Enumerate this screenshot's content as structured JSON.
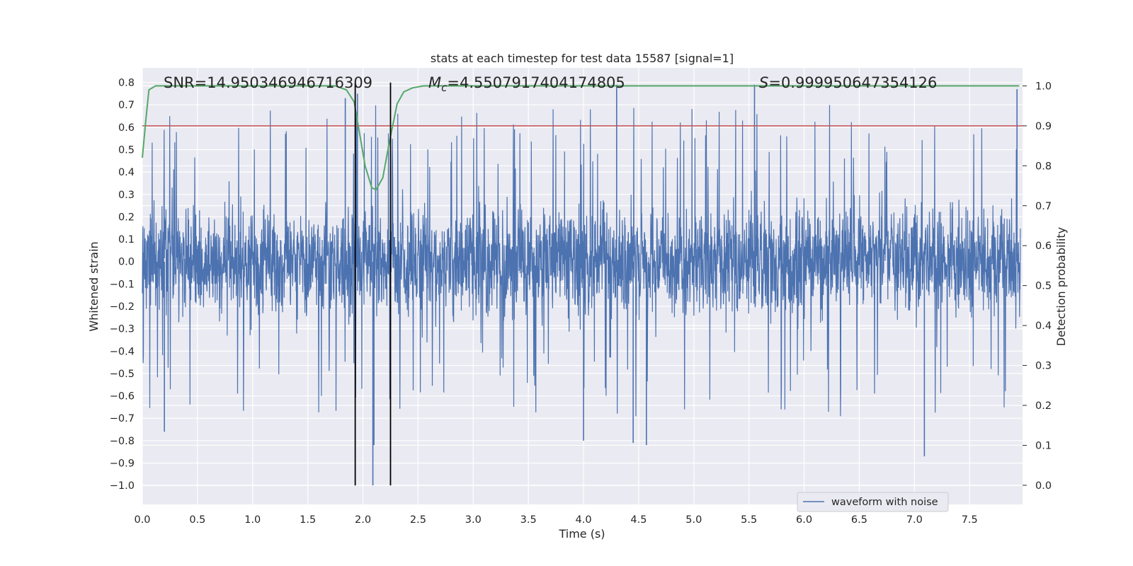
{
  "chart_data": {
    "type": "line",
    "title": "stats at each timestep for test data 15587 [signal=1]",
    "xlabel": "Time (s)",
    "ylabel": "Whitened strain",
    "y2label": "Detection probability",
    "xlim": [
      0.0,
      7.98
    ],
    "ylim": [
      -1.085,
      0.865
    ],
    "y2lim": [
      -0.048,
      1.045
    ],
    "x_ticks": [
      "0.0",
      "0.5",
      "1.0",
      "1.5",
      "2.0",
      "2.5",
      "3.0",
      "3.5",
      "4.0",
      "4.5",
      "5.0",
      "5.5",
      "6.0",
      "6.5",
      "7.0",
      "7.5"
    ],
    "y_ticks": [
      "0.8",
      "0.7",
      "0.6",
      "0.5",
      "0.4",
      "0.3",
      "0.2",
      "0.1",
      "0.0",
      "−0.1",
      "−0.2",
      "−0.3",
      "−0.4",
      "−0.5",
      "−0.6",
      "−0.7",
      "−0.8",
      "−0.9",
      "−1.0"
    ],
    "y2_ticks": [
      "1.0",
      "0.9",
      "0.8",
      "0.7",
      "0.6",
      "0.5",
      "0.4",
      "0.3",
      "0.2",
      "0.1",
      "0.0"
    ],
    "grid": true,
    "legend_position": "bottom-right",
    "annotations": {
      "snr": "SNR=14.950346946716309",
      "mc_symbol": "M",
      "mc_subscript": "c",
      "mc_value": "=4.5507917404174805",
      "s_symbol": "S",
      "s_value": "=0.999950647354126"
    },
    "colors": {
      "waveform": "#4c72b0",
      "probability": "#55a868",
      "threshold": "#c44e52",
      "markers": "#000000",
      "plot_bg": "#eaeaf2",
      "grid": "#ffffff"
    },
    "series": [
      {
        "name": "waveform with noise",
        "style": "dense noisy strain, envelope approx ±0.45 with spikes up to 0.8 and down to -1.0",
        "extreme_spikes": [
          {
            "x": 0.2,
            "y": -0.76
          },
          {
            "x": 1.84,
            "y": 0.73
          },
          {
            "x": 1.95,
            "y": 0.75
          },
          {
            "x": 2.09,
            "y": -1.0
          },
          {
            "x": 2.1,
            "y": -0.82
          },
          {
            "x": 4.0,
            "y": -0.8
          },
          {
            "x": 4.3,
            "y": 0.79
          },
          {
            "x": 4.45,
            "y": -0.81
          },
          {
            "x": 4.57,
            "y": -0.82
          },
          {
            "x": 5.55,
            "y": 0.79
          },
          {
            "x": 7.09,
            "y": -0.87
          },
          {
            "x": 7.93,
            "y": 0.77
          }
        ]
      },
      {
        "name": "",
        "axis": "right",
        "x": [
          0.0,
          0.03,
          0.06,
          0.12,
          0.25,
          0.5,
          1.0,
          1.5,
          1.75,
          1.85,
          1.92,
          1.97,
          2.02,
          2.08,
          2.12,
          2.18,
          2.24,
          2.31,
          2.37,
          2.45,
          2.55,
          2.7,
          3.0,
          4.0,
          5.0,
          6.0,
          7.0,
          7.95
        ],
        "y": [
          0.82,
          0.91,
          0.99,
          1.0,
          1.0,
          1.0,
          1.0,
          1.0,
          1.0,
          0.99,
          0.96,
          0.88,
          0.8,
          0.745,
          0.74,
          0.77,
          0.86,
          0.955,
          0.985,
          0.995,
          1.0,
          1.0,
          1.0,
          1.0,
          1.0,
          1.0,
          1.0,
          1.0
        ]
      }
    ],
    "threshold_line": {
      "axis": "right",
      "y": 0.9
    },
    "vertical_markers": {
      "x": [
        1.93,
        2.25
      ],
      "y_range": [
        -1.0,
        0.8
      ]
    }
  },
  "legend": {
    "label": "waveform with noise"
  }
}
